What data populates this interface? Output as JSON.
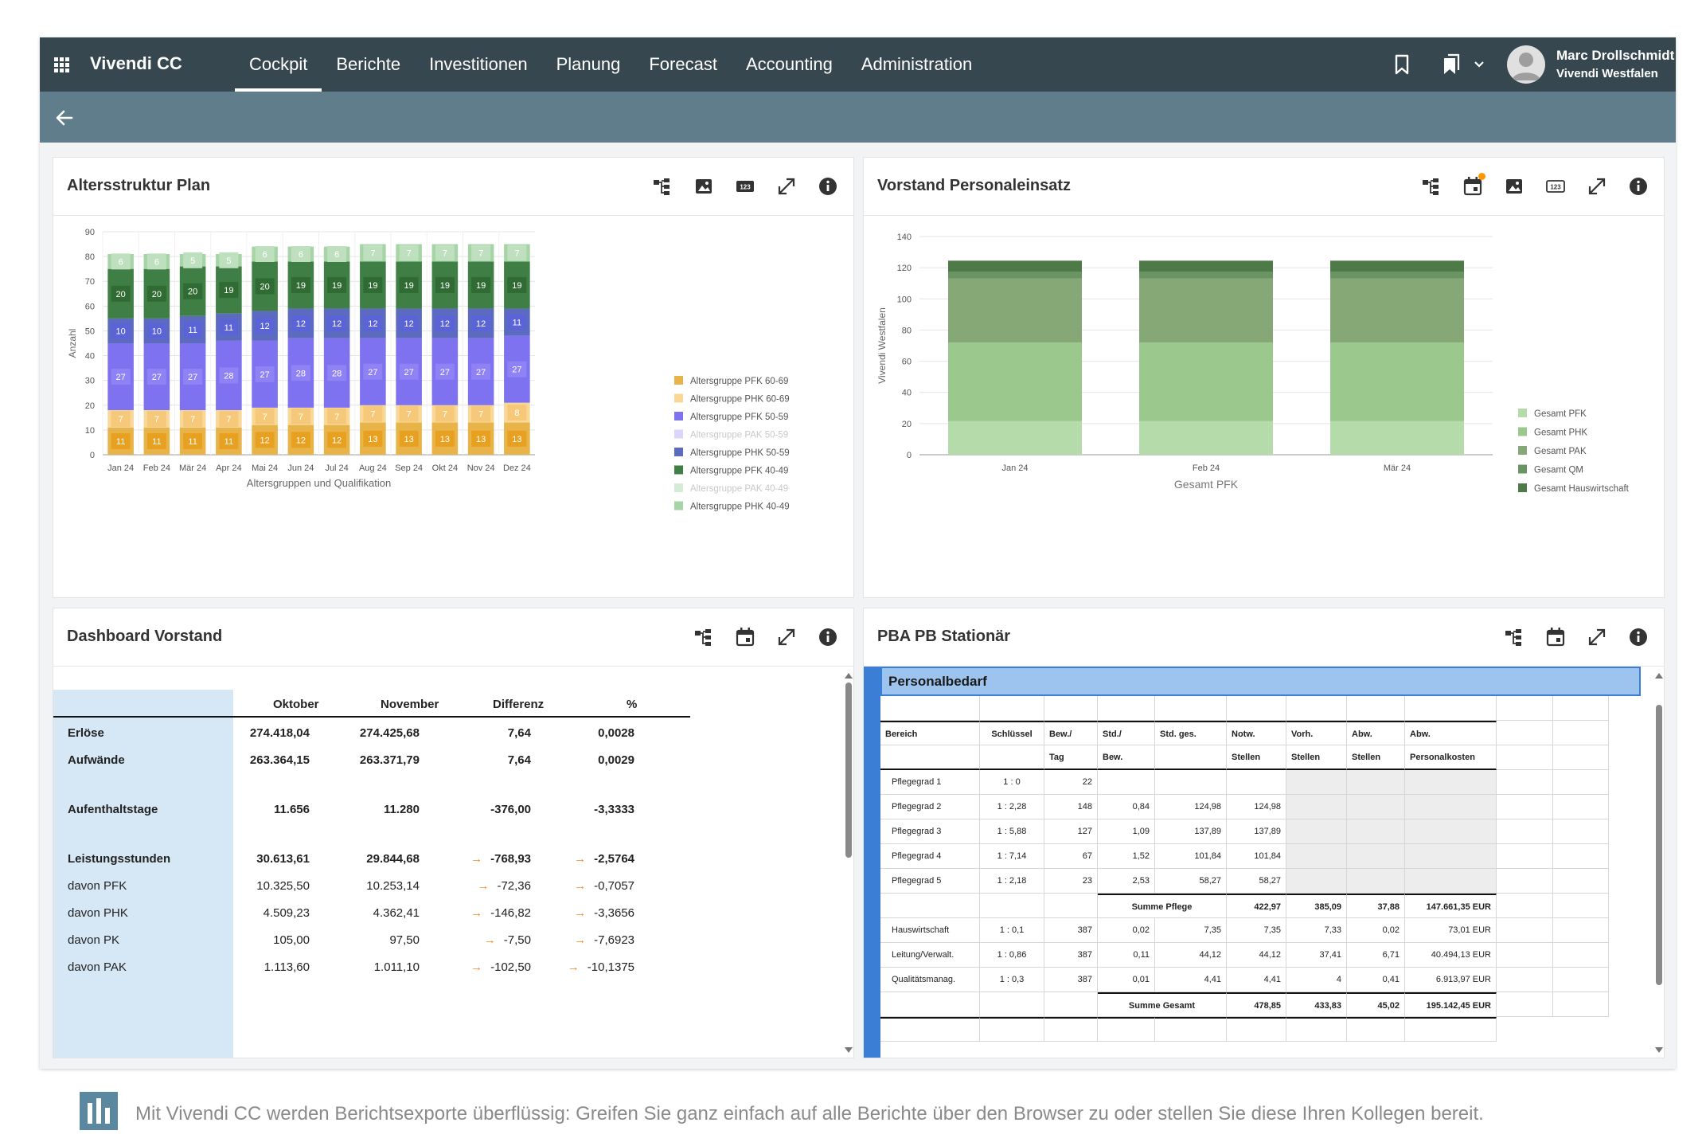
{
  "app": {
    "brand": "Vivendi CC",
    "nav": [
      "Cockpit",
      "Berichte",
      "Investitionen",
      "Planung",
      "Forecast",
      "Accounting",
      "Administration"
    ],
    "active_nav": "Cockpit",
    "user_name": "Marc Drollschmidt",
    "user_org": "Vivendi Westfalen"
  },
  "panels": {
    "alters": {
      "title": "Altersstruktur Plan"
    },
    "vorstand": {
      "title": "Vorstand Personaleinsatz"
    },
    "dashboard": {
      "title": "Dashboard Vorstand"
    },
    "pba": {
      "title": "PBA PB Stationär"
    }
  },
  "chart_data": [
    {
      "type": "bar",
      "stacked": true,
      "title": "Altersstruktur Plan",
      "xlabel": "Altersgruppen und Qualifikation",
      "ylabel": "Anzahl",
      "ylim": [
        0,
        90
      ],
      "yticks": [
        0,
        10,
        20,
        30,
        40,
        50,
        60,
        70,
        80,
        90
      ],
      "categories": [
        "Jan 24",
        "Feb 24",
        "Mär 24",
        "Apr 24",
        "Mai 24",
        "Jun 24",
        "Jul 24",
        "Aug 24",
        "Sep 24",
        "Okt 24",
        "Nov 24",
        "Dez 24"
      ],
      "legend_position": "right",
      "series": [
        {
          "name": "Altersgruppe PFK 60-69",
          "color": "#e8b44a",
          "values": [
            11,
            11,
            11,
            11,
            12,
            12,
            12,
            13,
            13,
            13,
            13,
            13
          ],
          "labeled": true
        },
        {
          "name": "Altersgruppe PHK 60-69",
          "color": "#f8d797",
          "values": [
            7,
            7,
            7,
            7,
            7,
            7,
            7,
            7,
            7,
            7,
            7,
            8
          ],
          "labeled": true
        },
        {
          "name": "Altersgruppe PFK 50-59",
          "color": "#7f72f0",
          "values": [
            27,
            27,
            27,
            28,
            27,
            28,
            28,
            27,
            27,
            27,
            27,
            27
          ],
          "labeled": true
        },
        {
          "name": "Altersgruppe PAK 50-59",
          "color": "#d9d5fb",
          "values": [
            0,
            0,
            0,
            0,
            0,
            0,
            0,
            0,
            0,
            0,
            0,
            0
          ],
          "labeled": false,
          "faded": true
        },
        {
          "name": "Altersgruppe PHK 50-59",
          "color": "#5c6bc0",
          "values": [
            10,
            10,
            11,
            11,
            12,
            12,
            12,
            12,
            12,
            12,
            12,
            11
          ],
          "labeled": true
        },
        {
          "name": "Altersgruppe PFK 40-49",
          "color": "#3f7f45",
          "values": [
            20,
            20,
            20,
            19,
            20,
            19,
            19,
            19,
            19,
            19,
            19,
            19
          ],
          "labeled": true
        },
        {
          "name": "Altersgruppe PAK 40-49",
          "color": "#d6ebd6",
          "values": [
            0,
            0,
            0,
            0,
            0,
            0,
            0,
            0,
            0,
            0,
            0,
            0
          ],
          "labeled": false,
          "faded": true
        },
        {
          "name": "Altersgruppe PHK 40-49",
          "color": "#a6d4a6",
          "values": [
            6,
            6,
            5,
            5,
            6,
            6,
            6,
            7,
            7,
            7,
            7,
            7
          ],
          "labeled": true
        }
      ]
    },
    {
      "type": "bar",
      "stacked": true,
      "title": "Vorstand Personaleinsatz",
      "xlabel": "Gesamt PFK",
      "ylabel": "Vivendi Westfalen",
      "ylim": [
        0,
        140
      ],
      "yticks": [
        0,
        20,
        40,
        60,
        80,
        100,
        120,
        140
      ],
      "categories": [
        "Jan 24",
        "Feb 24",
        "Mär 24"
      ],
      "legend_position": "right",
      "series": [
        {
          "name": "Gesamt PFK",
          "color": "#b6dbaa",
          "values": [
            21.5,
            21.5,
            21.5
          ]
        },
        {
          "name": "Gesamt PHK",
          "color": "#9bc98d",
          "values": [
            50.5,
            50.5,
            50.5
          ]
        },
        {
          "name": "Gesamt PAK",
          "color": "#85a876",
          "values": [
            41,
            41,
            41
          ]
        },
        {
          "name": "Gesamt QM",
          "color": "#6a9463",
          "values": [
            4.5,
            4.5,
            4.5
          ]
        },
        {
          "name": "Gesamt Hauswirtschaft",
          "color": "#4d7a46",
          "values": [
            7,
            7,
            7
          ]
        }
      ]
    }
  ],
  "dashboard": {
    "headers": [
      "",
      "Oktober",
      "November",
      "Differenz",
      "%"
    ],
    "rows": [
      {
        "label": "Erlöse",
        "bold": true,
        "v1": "274.418,04",
        "v2": "274.425,68",
        "v3": "7,64",
        "v4": "0,0028",
        "arrow": false
      },
      {
        "label": "Aufwände",
        "bold": true,
        "v1": "263.364,15",
        "v2": "263.371,79",
        "v3": "7,64",
        "v4": "0,0029",
        "arrow": false
      },
      {
        "label": "",
        "bold": false,
        "v1": "",
        "v2": "",
        "v3": "",
        "v4": "",
        "arrow": false,
        "spacer": true
      },
      {
        "label": "Aufenthaltstage",
        "bold": true,
        "v1": "11.656",
        "v2": "11.280",
        "v3": "-376,00",
        "v4": "-3,3333",
        "arrow": false
      },
      {
        "label": "",
        "bold": false,
        "v1": "",
        "v2": "",
        "v3": "",
        "v4": "",
        "arrow": false,
        "spacer": true
      },
      {
        "label": "Leistungsstunden",
        "bold": true,
        "v1": "30.613,61",
        "v2": "29.844,68",
        "v3": "-768,93",
        "v4": "-2,5764",
        "arrow": true
      },
      {
        "label": "davon PFK",
        "bold": false,
        "v1": "10.325,50",
        "v2": "10.253,14",
        "v3": "-72,36",
        "v4": "-0,7057",
        "arrow": true
      },
      {
        "label": "davon PHK",
        "bold": false,
        "v1": "4.509,23",
        "v2": "4.362,41",
        "v3": "-146,82",
        "v4": "-3,3656",
        "arrow": true
      },
      {
        "label": "davon PK",
        "bold": false,
        "v1": "105,00",
        "v2": "97,50",
        "v3": "-7,50",
        "v4": "-7,6923",
        "arrow": true
      },
      {
        "label": "davon PAK",
        "bold": false,
        "v1": "1.113,60",
        "v2": "1.011,10",
        "v3": "-102,50",
        "v4": "-10,1375",
        "arrow": true
      }
    ]
  },
  "pba": {
    "section_title": "Personalbedarf",
    "header_row1": [
      "Bereich",
      "Schlüssel",
      "Bew./",
      "Std./",
      "Std. ges.",
      "Notw.",
      "Vorh.",
      "Abw.",
      "Abw."
    ],
    "header_row2": [
      "",
      "",
      "Tag",
      "Bew.",
      "",
      "Stellen",
      "Stellen",
      "Stellen",
      "Personalkosten"
    ],
    "rows": [
      {
        "cells": [
          "Pflegegrad 1",
          "1 : 0",
          "22",
          "",
          "",
          "",
          "",
          "",
          ""
        ],
        "gray": [
          6,
          7,
          8
        ]
      },
      {
        "cells": [
          "Pflegegrad 2",
          "1 : 2,28",
          "148",
          "0,84",
          "124,98",
          "124,98",
          "",
          "",
          ""
        ],
        "gray": [
          6,
          7,
          8
        ]
      },
      {
        "cells": [
          "Pflegegrad 3",
          "1 : 5,88",
          "127",
          "1,09",
          "137,89",
          "137,89",
          "",
          "",
          ""
        ],
        "gray": [
          6,
          7,
          8
        ]
      },
      {
        "cells": [
          "Pflegegrad 4",
          "1 : 7,14",
          "67",
          "1,52",
          "101,84",
          "101,84",
          "",
          "",
          ""
        ],
        "gray": [
          6,
          7,
          8
        ]
      },
      {
        "cells": [
          "Pflegegrad 5",
          "1 : 2,18",
          "23",
          "2,53",
          "58,27",
          "58,27",
          "",
          "",
          ""
        ],
        "gray": [
          6,
          7,
          8
        ]
      },
      {
        "cells": [
          "",
          "",
          "",
          "Summe Pflege",
          "",
          "422,97",
          "385,09",
          "37,88",
          "147.661,35 EUR"
        ],
        "sum": true,
        "gray": []
      },
      {
        "cells": [
          "Hauswirtschaft",
          "1 : 0,1",
          "387",
          "0,02",
          "7,35",
          "7,35",
          "7,33",
          "0,02",
          "73,01 EUR"
        ],
        "gray": []
      },
      {
        "cells": [
          "Leitung/Verwalt.",
          "1 : 0,86",
          "387",
          "0,11",
          "44,12",
          "44,12",
          "37,41",
          "6,71",
          "40.494,13 EUR"
        ],
        "gray": []
      },
      {
        "cells": [
          "Qualitätsmanag.",
          "1 : 0,3",
          "387",
          "0,01",
          "4,41",
          "4,41",
          "4",
          "0,41",
          "6.913,97 EUR"
        ],
        "gray": []
      },
      {
        "cells": [
          "",
          "",
          "",
          "Summe Gesamt",
          "",
          "478,85",
          "433,83",
          "45,02",
          "195.142,45 EUR"
        ],
        "sum": true,
        "gray": []
      }
    ]
  },
  "footer": {
    "text": "Mit Vivendi CC werden Berichtsexporte überflüssig: Greifen Sie ganz einfach auf alle Berichte über den Browser zu oder stellen Sie diese Ihren Kollegen bereit."
  }
}
